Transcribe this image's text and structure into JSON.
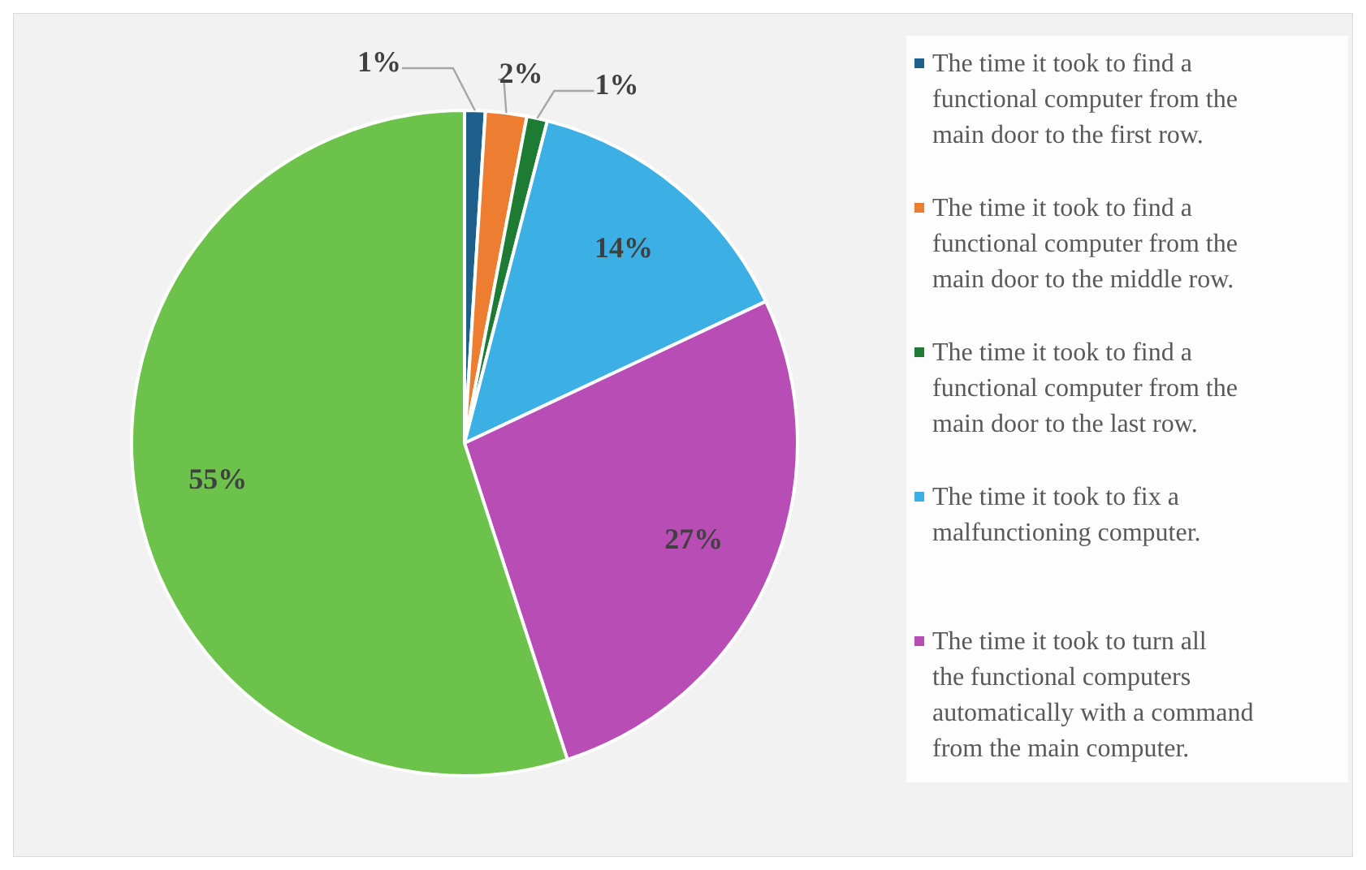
{
  "chart_data": {
    "type": "pie",
    "categories": [
      "The time it took to find a functional computer from the main door to the first row.",
      "The time it took to find a functional computer from the main door to the middle row.",
      "The time it took to find a functional computer from the main door to the last row.",
      "The time it took to fix a malfunctioning computer.",
      "The time it took to turn all the functional computers automatically with a command from the main computer.",
      null
    ],
    "values": [
      1,
      2,
      1,
      14,
      27,
      55
    ],
    "colors": [
      "#1f5f8b",
      "#ed7d31",
      "#1e7b34",
      "#3cb0e4",
      "#b84db6",
      "#6cc24a"
    ],
    "value_labels": [
      "1%",
      "2%",
      "1%",
      "14%",
      "27%",
      "55%"
    ],
    "legend": "right"
  }
}
